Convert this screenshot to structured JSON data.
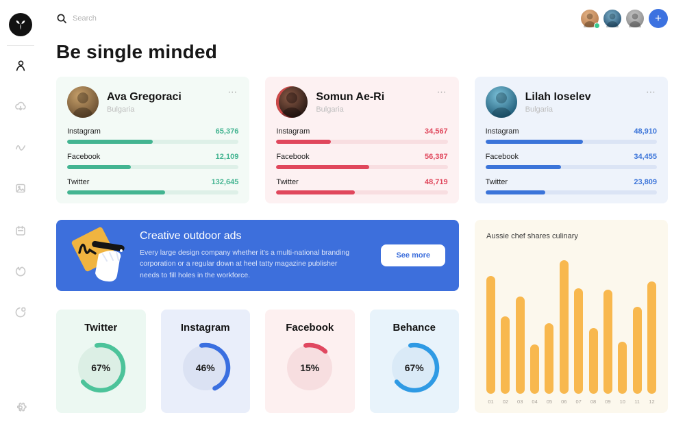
{
  "ui": {
    "more_options_icon": "⋯",
    "plus_icon": "+"
  },
  "topbar": {
    "search_placeholder": "Search",
    "status_dot_color": "#38c98e",
    "add_button_color": "#3c72e0",
    "avatars": [
      {
        "name": "user-avatar-1",
        "online": true
      },
      {
        "name": "user-avatar-2",
        "online": false
      },
      {
        "name": "user-avatar-3",
        "online": false
      }
    ]
  },
  "sidebar": {
    "icons": [
      "user",
      "cloud-download",
      "activity",
      "image",
      "calendar",
      "flame",
      "pie-chart",
      "settings"
    ],
    "active": "user"
  },
  "page": {
    "title": "Be single minded"
  },
  "profiles": [
    {
      "name": "Ava Gregoraci",
      "location": "Bulgaria",
      "accent": "#43b491",
      "bg": "#f3faf6",
      "track": "#def0e8",
      "stats": [
        {
          "platform": "Instagram",
          "value": "65,376",
          "pct": 50
        },
        {
          "platform": "Facebook",
          "value": "12,109",
          "pct": 37
        },
        {
          "platform": "Twitter",
          "value": "132,645",
          "pct": 57
        }
      ]
    },
    {
      "name": "Somun Ae-Ri",
      "location": "Bulgaria",
      "accent": "#e0475c",
      "bg": "#fdf1f2",
      "track": "#f8dee1",
      "stats": [
        {
          "platform": "Instagram",
          "value": "34,567",
          "pct": 32
        },
        {
          "platform": "Facebook",
          "value": "56,387",
          "pct": 54
        },
        {
          "platform": "Twitter",
          "value": "48,719",
          "pct": 46
        }
      ]
    },
    {
      "name": "Lilah Ioselev",
      "location": "Bulgaria",
      "accent": "#3b74d9",
      "bg": "#eef3fb",
      "track": "#dbe4f5",
      "stats": [
        {
          "platform": "Instagram",
          "value": "48,910",
          "pct": 57
        },
        {
          "platform": "Facebook",
          "value": "34,455",
          "pct": 44
        },
        {
          "platform": "Twitter",
          "value": "23,809",
          "pct": 35
        }
      ]
    }
  ],
  "banner": {
    "bg": "#3d6fdc",
    "title": "Creative outdoor ads",
    "body": "Every large design company whether it's a multi-national branding corporation or a regular down at heel tatty magazine publisher needs to fill holes in the workforce.",
    "button_label": "See more"
  },
  "gauges": [
    {
      "label": "Twitter",
      "percent": 67,
      "percent_label": "67%",
      "ring": "#4cc39a",
      "inner": "#dcefe5",
      "bg": "#ecf8f2"
    },
    {
      "label": "Instagram",
      "percent": 46,
      "percent_label": "46%",
      "ring": "#3a6fe0",
      "inner": "#dbe2f3",
      "bg": "#e9eefa"
    },
    {
      "label": "Facebook",
      "percent": 15,
      "percent_label": "15%",
      "ring": "#e04860",
      "inner": "#f7dee0",
      "bg": "#fdf0f0"
    },
    {
      "label": "Behance",
      "percent": 67,
      "percent_label": "67%",
      "ring": "#2f9ae4",
      "inner": "#daeaf7",
      "bg": "#e8f3fb"
    }
  ],
  "chart_data": {
    "type": "bar",
    "title": "Aussie chef shares culinary",
    "categories": [
      "01",
      "02",
      "03",
      "04",
      "05",
      "06",
      "07",
      "08",
      "09",
      "10",
      "11",
      "12"
    ],
    "values": [
      88,
      58,
      73,
      37,
      53,
      100,
      79,
      49,
      78,
      39,
      65,
      84
    ],
    "ylim": [
      0,
      100
    ],
    "xlabel": "",
    "ylabel": "",
    "grid": false,
    "legend": "none",
    "bar_color": "#f8b84e",
    "card_bg": "#fcf8ed"
  }
}
